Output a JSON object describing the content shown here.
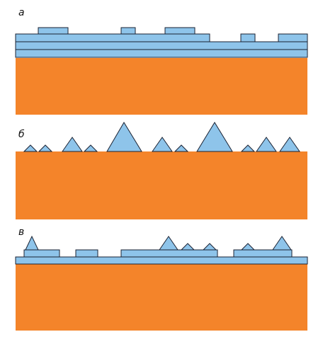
{
  "panels": [
    {
      "id": "a",
      "label": "а"
    },
    {
      "id": "b",
      "label": "б"
    },
    {
      "id": "c",
      "label": "в"
    }
  ],
  "colors": {
    "substrate": "#F4842A",
    "film": "#8EC4EA",
    "outline": "#1A2233",
    "background": "#FFFFFF"
  }
}
